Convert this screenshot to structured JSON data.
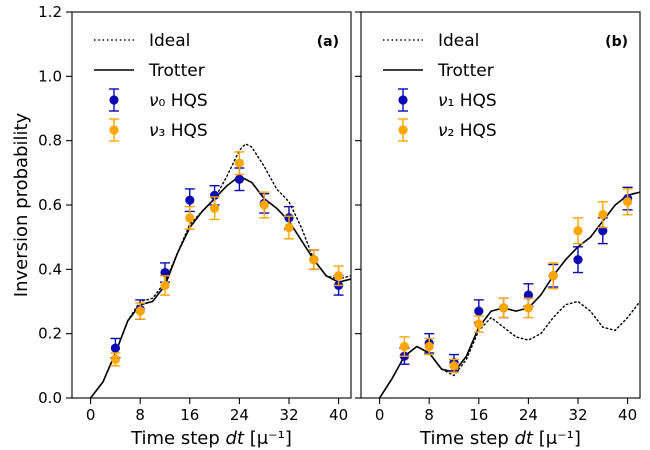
{
  "chart_data": [
    {
      "type": "line",
      "panel_label": "(a)",
      "xlabel_main": "Time step ",
      "xlabel_var": "dt",
      "xlabel_unit": " [μ⁻¹]",
      "ylabel": "Inversion probability",
      "xlim": [
        -3,
        42
      ],
      "ylim": [
        0,
        1.2
      ],
      "xticks": [
        0,
        8,
        16,
        24,
        32,
        40
      ],
      "xtick_labels": [
        "0",
        "8",
        "16",
        "24",
        "32",
        "40"
      ],
      "yticks": [
        0.0,
        0.2,
        0.4,
        0.6,
        0.8,
        1.0,
        1.2
      ],
      "ytick_labels": [
        "0.0",
        "0.2",
        "0.4",
        "0.6",
        "0.8",
        "1.0",
        "1.2"
      ],
      "legend": [
        "Ideal",
        "Trotter",
        "ν₀ HQS",
        "ν₃ HQS"
      ],
      "legend_position": "top-left",
      "series": [
        {
          "name": "Ideal",
          "style": "dotted",
          "color": "#000000",
          "x": [
            0,
            2,
            4,
            6,
            8,
            10,
            12,
            14,
            16,
            18,
            20,
            22,
            24,
            25,
            26,
            28,
            30,
            32,
            34,
            36,
            38,
            40,
            42
          ],
          "y": [
            0.0,
            0.05,
            0.14,
            0.24,
            0.3,
            0.31,
            0.36,
            0.45,
            0.54,
            0.58,
            0.62,
            0.69,
            0.77,
            0.79,
            0.78,
            0.72,
            0.65,
            0.61,
            0.53,
            0.43,
            0.38,
            0.37,
            0.38
          ]
        },
        {
          "name": "Trotter",
          "style": "solid",
          "color": "#000000",
          "x": [
            0,
            2,
            4,
            6,
            8,
            10,
            12,
            14,
            16,
            18,
            20,
            22,
            24,
            26,
            28,
            30,
            32,
            34,
            36,
            38,
            40,
            42
          ],
          "y": [
            0.0,
            0.05,
            0.14,
            0.24,
            0.29,
            0.3,
            0.35,
            0.45,
            0.53,
            0.58,
            0.62,
            0.66,
            0.69,
            0.67,
            0.62,
            0.59,
            0.55,
            0.49,
            0.43,
            0.38,
            0.36,
            0.37
          ]
        },
        {
          "name": "ν₀ HQS",
          "style": "markers",
          "color": "#0a0ab4",
          "x": [
            4,
            8,
            12,
            16,
            20,
            24,
            28,
            32,
            36,
            40
          ],
          "y": [
            0.155,
            0.275,
            0.39,
            0.615,
            0.63,
            0.68,
            0.605,
            0.56,
            0.43,
            0.35
          ],
          "err": [
            0.03,
            0.03,
            0.03,
            0.035,
            0.03,
            0.035,
            0.03,
            0.035,
            0.03,
            0.03
          ]
        },
        {
          "name": "ν₃ HQS",
          "style": "markers",
          "color": "#ffa500",
          "x": [
            4,
            8,
            12,
            16,
            20,
            24,
            28,
            32,
            36,
            40
          ],
          "y": [
            0.12,
            0.27,
            0.35,
            0.56,
            0.59,
            0.73,
            0.6,
            0.53,
            0.43,
            0.38
          ],
          "err": [
            0.02,
            0.025,
            0.03,
            0.035,
            0.035,
            0.035,
            0.04,
            0.035,
            0.03,
            0.03
          ]
        }
      ]
    },
    {
      "type": "line",
      "panel_label": "(b)",
      "xlabel_main": "Time step ",
      "xlabel_var": "dt",
      "xlabel_unit": " [μ⁻¹]",
      "xlim": [
        -3,
        42
      ],
      "ylim": [
        0,
        1.2
      ],
      "xticks": [
        0,
        8,
        16,
        24,
        32,
        40
      ],
      "xtick_labels": [
        "0",
        "8",
        "16",
        "24",
        "32",
        "40"
      ],
      "yticks": [
        0.0,
        0.2,
        0.4,
        0.6,
        0.8,
        1.0,
        1.2
      ],
      "legend": [
        "Ideal",
        "Trotter",
        "ν₁ HQS",
        "ν₂ HQS"
      ],
      "legend_position": "top-left",
      "series": [
        {
          "name": "Ideal",
          "style": "dotted",
          "color": "#000000",
          "x": [
            0,
            2,
            4,
            6,
            8,
            10,
            12,
            14,
            16,
            18,
            20,
            22,
            24,
            26,
            28,
            30,
            32,
            34,
            36,
            38,
            40,
            42
          ],
          "y": [
            0.0,
            0.06,
            0.13,
            0.16,
            0.14,
            0.09,
            0.07,
            0.12,
            0.21,
            0.25,
            0.22,
            0.19,
            0.18,
            0.2,
            0.25,
            0.29,
            0.3,
            0.27,
            0.22,
            0.21,
            0.25,
            0.3
          ]
        },
        {
          "name": "Trotter",
          "style": "solid",
          "color": "#000000",
          "x": [
            0,
            2,
            4,
            6,
            8,
            10,
            12,
            14,
            16,
            18,
            20,
            22,
            24,
            26,
            28,
            30,
            32,
            34,
            36,
            38,
            40,
            42
          ],
          "y": [
            0.0,
            0.06,
            0.13,
            0.16,
            0.14,
            0.09,
            0.08,
            0.13,
            0.22,
            0.27,
            0.28,
            0.27,
            0.28,
            0.32,
            0.38,
            0.43,
            0.47,
            0.5,
            0.55,
            0.6,
            0.63,
            0.64
          ]
        },
        {
          "name": "ν₁ HQS",
          "style": "markers",
          "color": "#0a0ab4",
          "x": [
            4,
            8,
            12,
            16,
            20,
            24,
            28,
            32,
            36,
            40
          ],
          "y": [
            0.13,
            0.17,
            0.11,
            0.27,
            0.28,
            0.32,
            0.38,
            0.43,
            0.52,
            0.62
          ],
          "err": [
            0.025,
            0.03,
            0.025,
            0.035,
            0.03,
            0.035,
            0.035,
            0.04,
            0.04,
            0.035
          ]
        },
        {
          "name": "ν₂ HQS",
          "style": "markers",
          "color": "#ffa500",
          "x": [
            4,
            8,
            12,
            16,
            20,
            24,
            28,
            32,
            36,
            40
          ],
          "y": [
            0.16,
            0.16,
            0.1,
            0.23,
            0.28,
            0.28,
            0.38,
            0.52,
            0.57,
            0.61
          ],
          "err": [
            0.03,
            0.025,
            0.02,
            0.025,
            0.03,
            0.03,
            0.04,
            0.04,
            0.04,
            0.04
          ]
        }
      ]
    }
  ]
}
